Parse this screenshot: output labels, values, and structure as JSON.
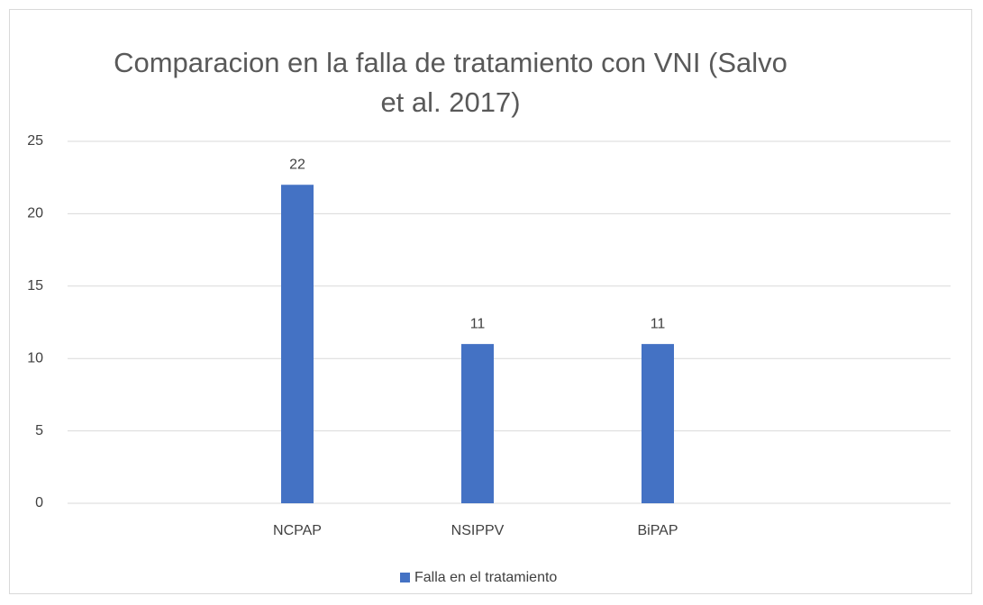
{
  "chart_data": {
    "type": "bar",
    "title": "Comparacion en la falla de tratamiento con VNI (Salvo et al. 2017)",
    "categories": [
      "NCPAP",
      "NSIPPV",
      "BiPAP"
    ],
    "series": [
      {
        "name": "Falla en el tratamiento",
        "color": "#4472c4",
        "values": [
          22,
          11,
          11
        ]
      }
    ],
    "ylim": [
      0,
      25
    ],
    "yticks": [
      0,
      5,
      10,
      15,
      20,
      25
    ],
    "grid": true,
    "legend": "bottom"
  }
}
